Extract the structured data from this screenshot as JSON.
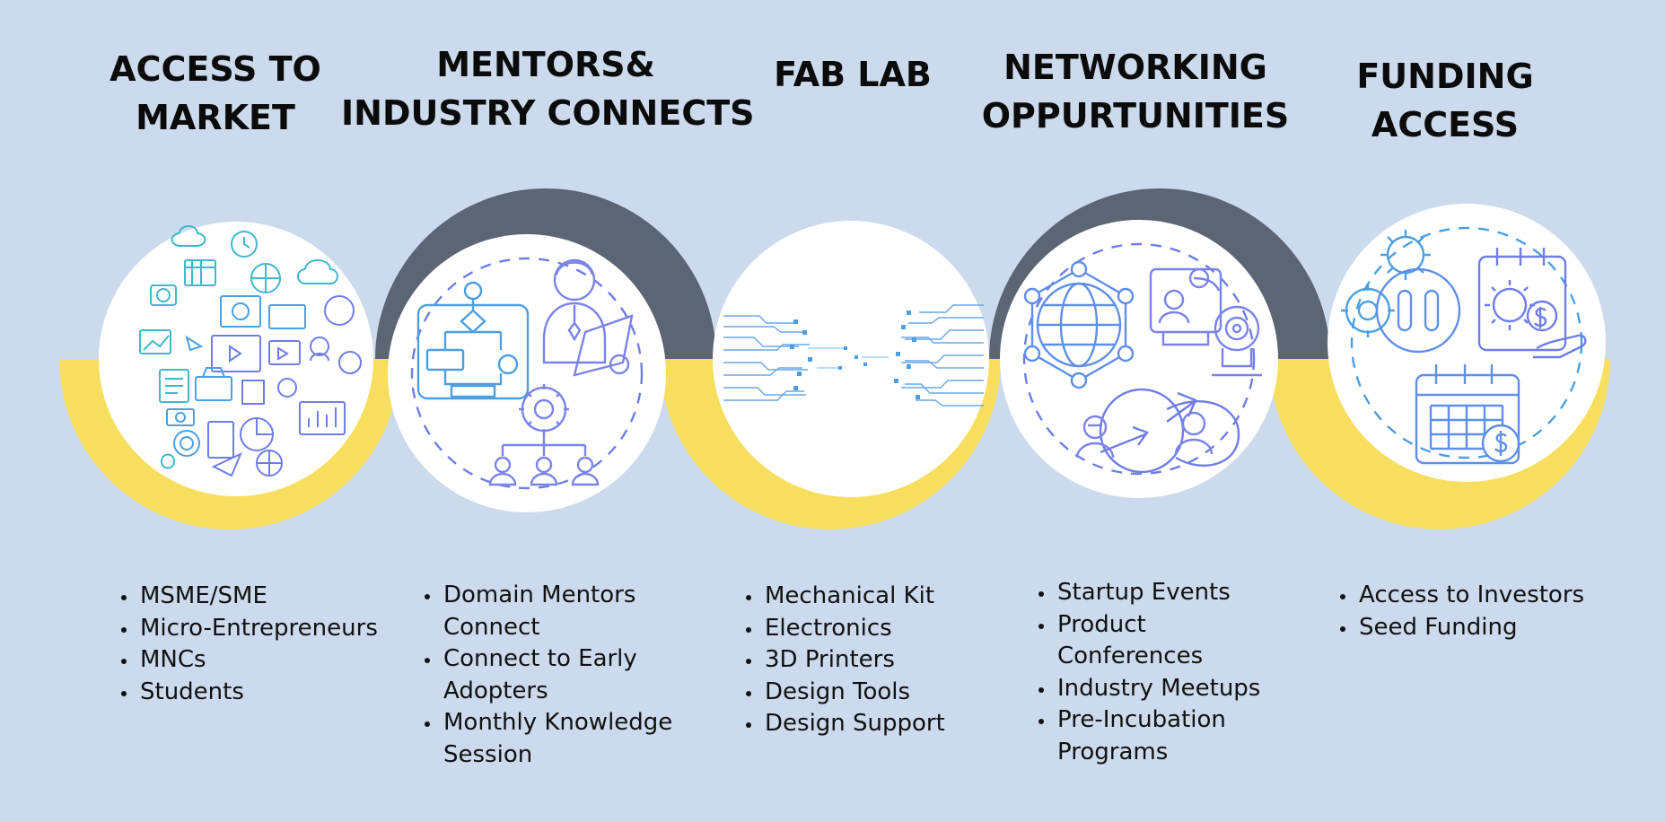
{
  "columns": [
    {
      "title": [
        "ACCESS TO",
        "MARKET"
      ],
      "icon": "market-collage-icon",
      "items": [
        "MSME/SME",
        "Micro-Entrepreneurs",
        "MNCs",
        "Students"
      ]
    },
    {
      "title": [
        "MENTORS&",
        "INDUSTRY CONNECTS"
      ],
      "icon": "mentor-flowchart-icon",
      "items": [
        "Domain Mentors Connect",
        "Connect to Early Adopters",
        "Monthly Knowledge Session"
      ]
    },
    {
      "title": [
        "FAB LAB"
      ],
      "icon": "circuit-board-icon",
      "items": [
        "Mechanical Kit",
        "Electronics",
        "3D Printers",
        "Design Tools",
        "Design Support"
      ]
    },
    {
      "title": [
        "NETWORKING",
        "OPPURTUNITIES"
      ],
      "icon": "global-network-icon",
      "items": [
        "Startup Events",
        "Product Conferences",
        "Industry Meetups",
        "Pre-Incubation Programs"
      ]
    },
    {
      "title": [
        "FUNDING",
        "ACCESS"
      ],
      "icon": "funding-calendar-icon",
      "items": [
        "Access to Investors",
        "Seed Funding"
      ]
    }
  ],
  "colors": {
    "background": "#cbdaec",
    "yellow_arc": "#f8de5f",
    "dark_arc": "#5b6574",
    "circle_fill": "#ffffff",
    "icon_stroke": "#6f7de6",
    "icon_stroke_alt": "#3fb8c9"
  }
}
